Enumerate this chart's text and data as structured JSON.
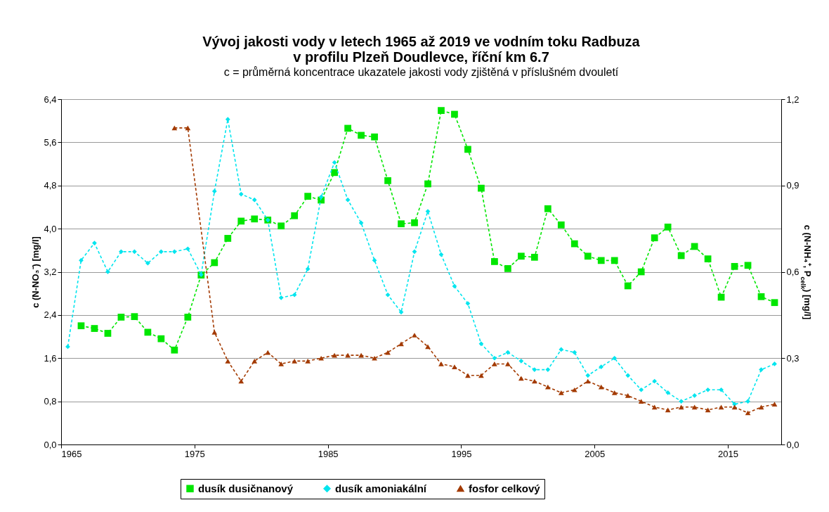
{
  "chart_data": {
    "type": "line",
    "title": "Vývoj jakosti vody v letech 1965 až 2019 ve vodním toku Radbuza\nv profilu Plzeň Doudlevce, říční km 6.7",
    "subtitle": "c = průměrná koncentrace ukazatele jakosti vody zjištěná v příslušném dvouletí",
    "ylabel": "c (N-NO₃⁻) [mg/l]",
    "y2label": "c (N-NH₄⁺, P$_{celk}$) [mg/l]",
    "xlim": [
      1965,
      2019
    ],
    "xticks": [
      1965,
      1975,
      1985,
      1995,
      2005,
      2015
    ],
    "ylim": [
      0,
      6.4
    ],
    "yticks": [
      {
        "value": 0,
        "label": "0,0"
      },
      {
        "value": 0.8,
        "label": "0,8"
      },
      {
        "value": 1.6,
        "label": "1,6"
      },
      {
        "value": 2.4,
        "label": "2,4"
      },
      {
        "value": 3.2,
        "label": "3,2"
      },
      {
        "value": 4.0,
        "label": "4,0"
      },
      {
        "value": 4.8,
        "label": "4,8"
      },
      {
        "value": 5.6,
        "label": "5,6"
      },
      {
        "value": 6.4,
        "label": "6,4"
      }
    ],
    "y2lim": [
      0,
      1.2
    ],
    "y2ticks": [
      {
        "value": 0,
        "label": "0,0"
      },
      {
        "value": 0.3,
        "label": "0,3"
      },
      {
        "value": 0.6,
        "label": "0,6"
      },
      {
        "value": 0.9,
        "label": "0,9"
      },
      {
        "value": 1.2,
        "label": "1,2"
      }
    ],
    "grid": "y",
    "legend": "bottom",
    "line_style": "dashed",
    "series": [
      {
        "name": "dusík dusičnanový",
        "color": "#00e600",
        "marker": "square",
        "x": [
          1966.5,
          1967.5,
          1968.5,
          1969.5,
          1970.5,
          1971.5,
          1972.5,
          1973.5,
          1974.5,
          1975.5,
          1976.5,
          1977.5,
          1978.5,
          1979.5,
          1980.5,
          1981.5,
          1982.5,
          1983.5,
          1984.5,
          1985.5,
          1986.5,
          1987.5,
          1988.5,
          1989.5,
          1990.5,
          1991.5,
          1992.5,
          1993.5,
          1994.5,
          1995.5,
          1996.5,
          1997.5,
          1998.5,
          1999.5,
          2000.5,
          2001.5,
          2002.5,
          2003.5,
          2004.5,
          2005.5,
          2006.5,
          2007.5,
          2008.5,
          2009.5,
          2010.5,
          2011.5,
          2012.5,
          2013.5,
          2014.5,
          2015.5,
          2016.5,
          2017.5,
          2018.5
        ],
        "values": [
          2.2,
          2.15,
          2.06,
          2.36,
          2.37,
          2.08,
          1.96,
          1.75,
          2.36,
          3.14,
          3.37,
          3.82,
          4.14,
          4.18,
          4.16,
          4.05,
          4.24,
          4.6,
          4.53,
          5.04,
          5.86,
          5.73,
          5.7,
          4.89,
          4.09,
          4.11,
          4.83,
          6.19,
          6.12,
          5.47,
          4.75,
          3.39,
          3.26,
          3.49,
          3.47,
          4.37,
          4.07,
          3.72,
          3.49,
          3.41,
          3.41,
          2.94,
          3.2,
          3.83,
          4.03,
          3.5,
          3.67,
          3.44,
          2.73,
          3.3,
          3.32,
          2.74,
          2.63
        ]
      },
      {
        "name": "dusík amoniakální",
        "color": "#00e5ee",
        "marker": "diamond",
        "axis": "y2",
        "x": [
          1965.5,
          1966.5,
          1967.5,
          1968.5,
          1969.5,
          1970.5,
          1971.5,
          1972.5,
          1973.5,
          1974.5,
          1975.5,
          1976.5,
          1977.5,
          1978.5,
          1979.5,
          1980.5,
          1981.5,
          1982.5,
          1983.5,
          1984.5,
          1985.5,
          1986.5,
          1987.5,
          1988.5,
          1989.5,
          1990.5,
          1991.5,
          1992.5,
          1993.5,
          1994.5,
          1995.5,
          1996.5,
          1997.5,
          1998.5,
          1999.5,
          2000.5,
          2001.5,
          2002.5,
          2003.5,
          2004.5,
          2005.5,
          2006.5,
          2007.5,
          2008.5,
          2009.5,
          2010.5,
          2011.5,
          2012.5,
          2013.5,
          2014.5,
          2015.5,
          2016.5,
          2017.5,
          2018.5
        ],
        "values": [
          0.34,
          0.64,
          0.7,
          0.6,
          0.67,
          0.67,
          0.63,
          0.67,
          0.67,
          0.68,
          0.59,
          0.88,
          1.13,
          0.87,
          0.85,
          0.78,
          0.51,
          0.52,
          0.61,
          0.86,
          0.98,
          0.85,
          0.77,
          0.64,
          0.52,
          0.46,
          0.67,
          0.81,
          0.66,
          0.55,
          0.49,
          0.35,
          0.3,
          0.32,
          0.29,
          0.26,
          0.26,
          0.33,
          0.32,
          0.24,
          0.27,
          0.3,
          0.24,
          0.19,
          0.22,
          0.18,
          0.15,
          0.17,
          0.19,
          0.19,
          0.14,
          0.15,
          0.26,
          0.28
        ]
      },
      {
        "name": "fosfor celkový",
        "color": "#a33a00",
        "marker": "triangle",
        "axis": "y2",
        "x": [
          1973.5,
          1974.5,
          1976.5,
          1977.5,
          1978.5,
          1979.5,
          1980.5,
          1981.5,
          1982.5,
          1983.5,
          1984.5,
          1985.5,
          1986.5,
          1987.5,
          1988.5,
          1989.5,
          1990.5,
          1991.5,
          1992.5,
          1993.5,
          1994.5,
          1995.5,
          1996.5,
          1997.5,
          1998.5,
          1999.5,
          2000.5,
          2001.5,
          2002.5,
          2003.5,
          2004.5,
          2005.5,
          2006.5,
          2007.5,
          2008.5,
          2009.5,
          2010.5,
          2011.5,
          2012.5,
          2013.5,
          2014.5,
          2015.5,
          2016.5,
          2017.5,
          2018.5
        ],
        "values": [
          1.1,
          1.1,
          0.39,
          0.29,
          0.22,
          0.29,
          0.32,
          0.28,
          0.29,
          0.29,
          0.3,
          0.31,
          0.31,
          0.31,
          0.3,
          0.32,
          0.35,
          0.38,
          0.34,
          0.28,
          0.27,
          0.24,
          0.24,
          0.28,
          0.28,
          0.23,
          0.22,
          0.2,
          0.18,
          0.19,
          0.22,
          0.2,
          0.18,
          0.17,
          0.15,
          0.13,
          0.12,
          0.13,
          0.13,
          0.12,
          0.13,
          0.13,
          0.11,
          0.13,
          0.14
        ]
      }
    ]
  }
}
